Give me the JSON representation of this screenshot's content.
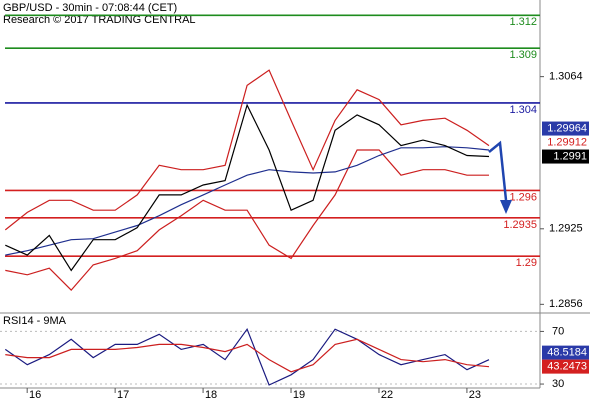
{
  "chart_data": [
    {
      "type": "line",
      "title": "GBP/USD - 30min - 07:08:44 (CET)",
      "subtitle": "Research © 2017 TRADING CENTRAL",
      "x": [
        -0.34,
        -0.09,
        0.16,
        0.41,
        0.66,
        0.91,
        1.16,
        1.41,
        1.66,
        1.91,
        2.16,
        2.41,
        2.66,
        2.91,
        3.16,
        3.41,
        3.66,
        3.91,
        4.16,
        4.41,
        4.66,
        4.91,
        5.16
      ],
      "xlim": [
        -0.4,
        5.74
      ],
      "xticks": [
        {
          "value": 0,
          "label": "16"
        },
        {
          "value": 1,
          "label": "17"
        },
        {
          "value": 2,
          "label": "18"
        },
        {
          "value": 3,
          "label": "19"
        },
        {
          "value": 4,
          "label": "22"
        },
        {
          "value": 5,
          "label": "23"
        }
      ],
      "ylim": [
        1.2849,
        1.3134
      ],
      "yticks": [
        1.2856,
        1.2925,
        1.3064
      ],
      "series": [
        {
          "color": "#cc1f1f",
          "values": [
            1.2924,
            1.294,
            1.2951,
            1.2951,
            1.2942,
            1.2942,
            1.2956,
            1.2983,
            1.2979,
            1.2979,
            1.2983,
            1.3056,
            1.307,
            1.3024,
            1.2979,
            1.3024,
            1.3052,
            1.3043,
            1.302,
            1.3024,
            1.3026,
            1.3015,
            1.3001
          ]
        },
        {
          "color": "#cc1f1f",
          "values": [
            1.2887,
            1.2883,
            1.2889,
            1.2869,
            1.2892,
            1.2898,
            1.2905,
            1.2924,
            1.2937,
            1.2951,
            1.2942,
            1.2942,
            1.291,
            1.2898,
            1.2928,
            1.2956,
            1.2997,
            1.2997,
            1.2974,
            1.2979,
            1.2979,
            1.2974,
            1.2974
          ]
        },
        {
          "color": "#1f2f8f",
          "values": [
            1.2901,
            1.2905,
            1.291,
            1.2915,
            1.2916,
            1.2922,
            1.2928,
            1.2937,
            1.2947,
            1.2956,
            1.2965,
            1.2974,
            1.2979,
            1.2977,
            1.2976,
            1.2977,
            1.2983,
            1.2992,
            1.2999,
            1.2999,
            1.3,
            1.2999,
            1.2997
          ]
        },
        {
          "color": "#000000",
          "values": [
            1.291,
            1.2901,
            1.2919,
            1.2887,
            1.2915,
            1.2915,
            1.2926,
            1.2956,
            1.2956,
            1.2965,
            1.2969,
            1.3038,
            1.2997,
            1.2942,
            1.2951,
            1.3015,
            1.3029,
            1.302,
            1.3001,
            1.3006,
            1.3001,
            1.2992,
            1.2991
          ]
        }
      ],
      "levels": [
        {
          "value": 1.312,
          "color": "#1e8c1e"
        },
        {
          "value": 1.309,
          "color": "#1e8c1e"
        },
        {
          "value": 1.304,
          "color": "#1a1aa0"
        },
        {
          "value": 1.296,
          "color": "#d42020"
        },
        {
          "value": 1.2935,
          "color": "#d42020"
        },
        {
          "value": 1.29,
          "color": "#d42020"
        }
      ],
      "price_tags": [
        {
          "value": 1.29964,
          "color": "#2a3aa8",
          "filled": true
        },
        {
          "value": 1.29912,
          "color": "#d42020",
          "filled": false
        },
        {
          "value": 1.2991,
          "color": "#000000",
          "filled": true
        }
      ]
    },
    {
      "type": "line",
      "title": "RSI14 - 9MA",
      "x": [
        -0.34,
        -0.09,
        0.16,
        0.41,
        0.66,
        0.91,
        1.16,
        1.41,
        1.66,
        1.91,
        2.16,
        2.41,
        2.66,
        2.91,
        3.16,
        3.41,
        3.66,
        3.91,
        4.16,
        4.41,
        4.66,
        4.91,
        5.16
      ],
      "xlim": [
        -0.4,
        5.74
      ],
      "ylim": [
        27,
        84
      ],
      "yticks": [
        30,
        70
      ],
      "grid": true,
      "series": [
        {
          "color": "#1a1a80",
          "values": [
            56.3,
            44.7,
            52.4,
            64.0,
            50.1,
            60.1,
            60.1,
            67.8,
            56.3,
            60.1,
            48.6,
            71.7,
            29.3,
            37.0,
            48.6,
            71.7,
            64.0,
            52.4,
            44.7,
            48.6,
            52.4,
            40.9,
            48.5
          ]
        },
        {
          "color": "#cc1f1f",
          "values": [
            52.4,
            50.1,
            50.1,
            56.3,
            56.3,
            56.3,
            57.8,
            60.1,
            60.1,
            57.8,
            54.7,
            60.1,
            48.6,
            39.3,
            44.7,
            60.1,
            64.0,
            56.3,
            48.6,
            47.0,
            48.6,
            44.7,
            43.2
          ]
        }
      ],
      "price_tags": [
        {
          "value": 48.5184,
          "color": "#2a3aa8",
          "filled": true
        },
        {
          "value": 43.2473,
          "color": "#d42020",
          "filled": true
        }
      ]
    }
  ]
}
